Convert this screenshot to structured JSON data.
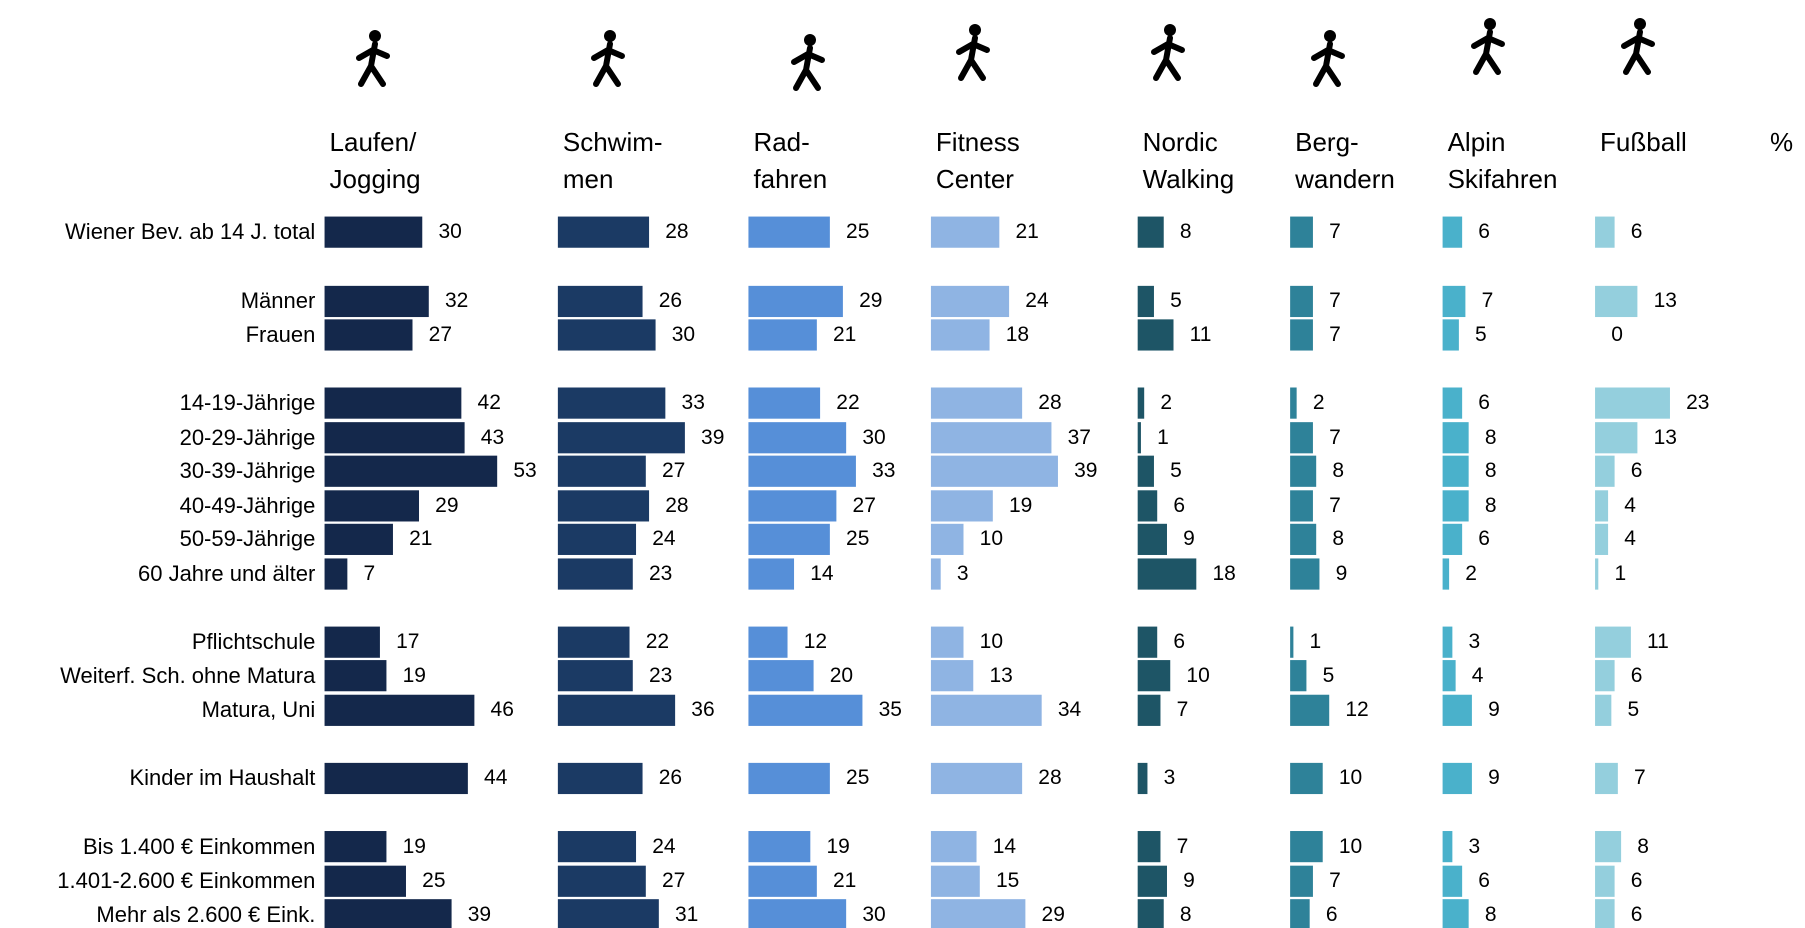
{
  "chart_data": {
    "type": "bar",
    "unit": "%",
    "categories": [
      "Wiener Bev. ab 14 J. total",
      "Männer",
      "Frauen",
      "14-19-Jährige",
      "20-29-Jährige",
      "30-39-Jährige",
      "40-49-Jährige",
      "50-59-Jährige",
      "60 Jahre und älter",
      "Pflichtschule",
      "Weiterf. Sch. ohne Matura",
      "Matura, Uni",
      "Kinder im Haushalt",
      "Bis 1.400 € Einkommen",
      "1.401-2.600 € Einkommen",
      "Mehr als 2.600 € Eink."
    ],
    "series": [
      {
        "name": "Laufen/\nJogging",
        "color": "#14284b",
        "values": [
          30,
          32,
          27,
          42,
          43,
          53,
          29,
          21,
          7,
          17,
          19,
          46,
          44,
          19,
          25,
          39
        ]
      },
      {
        "name": "Schwim-\nmen",
        "color": "#1b3a64",
        "values": [
          28,
          26,
          30,
          33,
          39,
          27,
          28,
          24,
          23,
          22,
          23,
          36,
          26,
          24,
          27,
          31
        ]
      },
      {
        "name": "Rad-\nfahren",
        "color": "#568fd8",
        "values": [
          25,
          29,
          21,
          22,
          30,
          33,
          27,
          25,
          14,
          12,
          20,
          35,
          25,
          19,
          21,
          30
        ]
      },
      {
        "name": "Fitness\nCenter",
        "color": "#8fb4e3",
        "values": [
          21,
          24,
          18,
          28,
          37,
          39,
          19,
          10,
          3,
          10,
          13,
          34,
          28,
          14,
          15,
          29
        ]
      },
      {
        "name": "Nordic\nWalking",
        "color": "#1e5566",
        "values": [
          8,
          5,
          11,
          2,
          1,
          5,
          6,
          9,
          18,
          6,
          10,
          7,
          3,
          7,
          9,
          8
        ]
      },
      {
        "name": "Berg-\nwandern",
        "color": "#2e8299",
        "values": [
          7,
          7,
          7,
          2,
          7,
          8,
          7,
          8,
          9,
          1,
          5,
          12,
          10,
          10,
          7,
          6
        ]
      },
      {
        "name": "Alpin\nSkifahren",
        "color": "#4ab1cb",
        "values": [
          6,
          7,
          5,
          6,
          8,
          8,
          8,
          6,
          2,
          3,
          4,
          9,
          9,
          3,
          6,
          8
        ]
      },
      {
        "name": "Fußball",
        "color": "#94cfdd",
        "values": [
          6,
          13,
          0,
          23,
          13,
          6,
          4,
          4,
          1,
          11,
          6,
          5,
          7,
          8,
          6,
          6
        ]
      }
    ]
  }
}
